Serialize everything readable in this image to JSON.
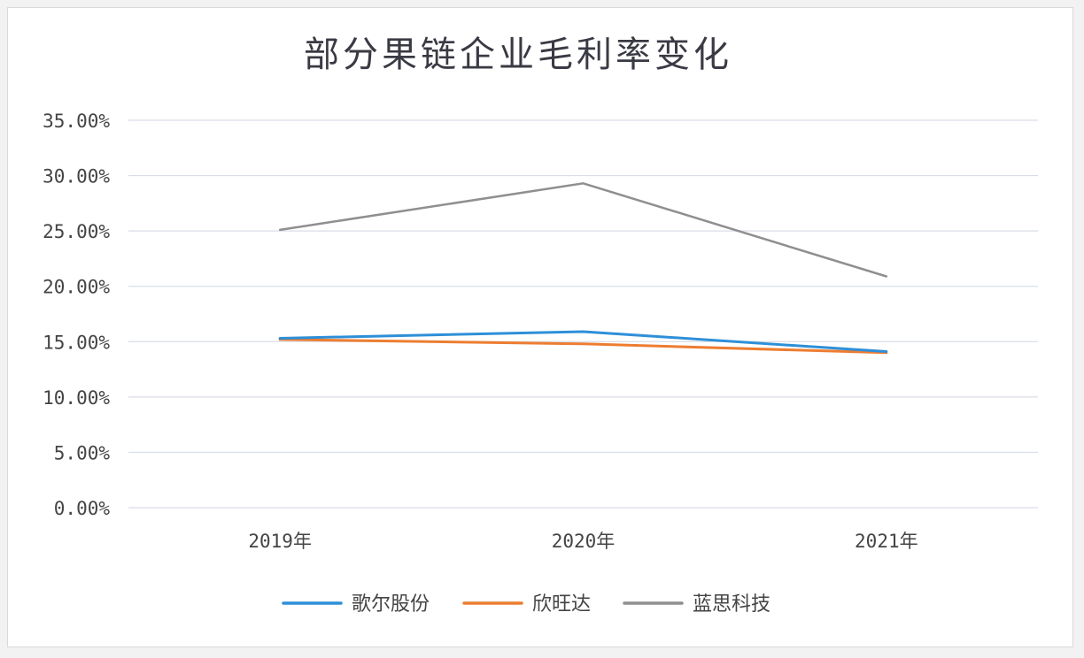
{
  "chart_data": {
    "type": "line",
    "title": "部分果链企业毛利率变化",
    "xlabel": "",
    "ylabel": "",
    "categories": [
      "2019年",
      "2020年",
      "2021年"
    ],
    "y_ticks": [
      "0.00%",
      "5.00%",
      "10.00%",
      "15.00%",
      "20.00%",
      "25.00%",
      "30.00%",
      "35.00%"
    ],
    "ylim": [
      0,
      35
    ],
    "grid": true,
    "legend_position": "bottom",
    "series": [
      {
        "name": "歌尔股份",
        "color": "#2e8fd8",
        "values": [
          15.3,
          15.9,
          14.1
        ]
      },
      {
        "name": "欣旺达",
        "color": "#ed7d31",
        "values": [
          15.2,
          14.8,
          14.0
        ]
      },
      {
        "name": "蓝思科技",
        "color": "#8f8f8f",
        "values": [
          25.1,
          29.3,
          20.9
        ]
      }
    ]
  }
}
